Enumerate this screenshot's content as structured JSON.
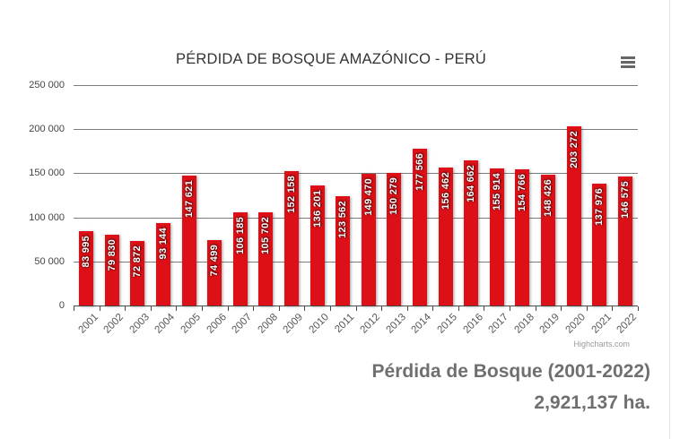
{
  "chart": {
    "title": "PÉRDIDA DE BOSQUE AMAZÓNICO - PERÚ"
  },
  "chart_data": {
    "type": "bar",
    "title": "PÉRDIDA DE BOSQUE AMAZÓNICO - PERÚ",
    "categories": [
      "2001",
      "2002",
      "2003",
      "2004",
      "2005",
      "2006",
      "2007",
      "2008",
      "2009",
      "2010",
      "2011",
      "2012",
      "2013",
      "2014",
      "2015",
      "2016",
      "2017",
      "2018",
      "2019",
      "2020",
      "2021",
      "2022"
    ],
    "values": [
      83995,
      79830,
      72872,
      93144,
      147621,
      74499,
      106185,
      105702,
      152158,
      136201,
      123562,
      149470,
      150279,
      177566,
      156462,
      164662,
      155914,
      154766,
      148426,
      203272,
      137976,
      146575
    ],
    "xlabel": "",
    "ylabel": "",
    "ylim": [
      0,
      250000
    ],
    "ytick_step": 50000,
    "ytick_labels": [
      "0",
      "50 000",
      "100 000",
      "150 000",
      "200 000",
      "250 000"
    ],
    "grid": true,
    "legend": false,
    "bar_color": "#dc1016",
    "data_label_color": "#ffffff",
    "data_labels_rotated": "vertical, read bottom-to-top, inside top of bar",
    "xlabels_rotation_deg": -45
  },
  "icons": {
    "context_menu": "hamburger-menu-icon"
  },
  "caption": {
    "line1": "Pérdida de Bosque (2001-2022)",
    "line2": "2,921,137 ha."
  },
  "credits": "Highcharts.com"
}
